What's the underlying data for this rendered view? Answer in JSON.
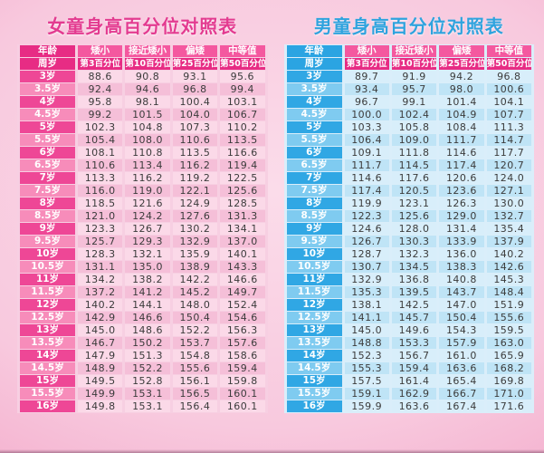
{
  "colors": {
    "girls": {
      "title": "#e33b90",
      "header_group": "#f4589f",
      "header_pct": "#e72c84",
      "age_header": "#e72c84",
      "age_cell_a": "#ee4796",
      "age_cell_b": "#f78cba",
      "row_a": "#fbd9e8",
      "row_b": "#f5bfd8",
      "gap": "#f7cfe2",
      "text": "#3b3b3b"
    },
    "boys": {
      "title": "#2fa3de",
      "header_group": "#f4589f",
      "header_pct": "#e72c84",
      "age_header": "#2ba4e2",
      "age_cell_a": "#30a7e4",
      "age_cell_b": "#7fcbf0",
      "row_a": "#d8eefa",
      "row_b": "#bfe4f6",
      "gap": "#daeefa",
      "text": "#3b3b3b"
    },
    "background_center": "#fbdcea",
    "background_edge": "#f19fc3"
  },
  "chart_data": [
    {
      "type": "table",
      "theme": "girls",
      "title": "女童身高百分位对照表",
      "header_row1": [
        "年龄",
        "矮小",
        "接近矮小",
        "偏矮",
        "中等值"
      ],
      "header_row2": [
        "周岁",
        "第3百分位",
        "第10百分位",
        "第25百分位",
        "第50百分位"
      ],
      "rows": [
        [
          "3岁",
          "88.6",
          "90.8",
          "93.1",
          "95.6"
        ],
        [
          "3.5岁",
          "92.4",
          "94.6",
          "96.8",
          "99.4"
        ],
        [
          "4岁",
          "95.8",
          "98.1",
          "100.4",
          "103.1"
        ],
        [
          "4.5岁",
          "99.2",
          "101.5",
          "104.0",
          "106.7"
        ],
        [
          "5岁",
          "102.3",
          "104.8",
          "107.3",
          "110.2"
        ],
        [
          "5.5岁",
          "105.4",
          "108.0",
          "110.6",
          "113.5"
        ],
        [
          "6岁",
          "108.1",
          "110.8",
          "113.5",
          "116.6"
        ],
        [
          "6.5岁",
          "110.6",
          "113.4",
          "116.2",
          "119.4"
        ],
        [
          "7岁",
          "113.3",
          "116.2",
          "119.2",
          "122.5"
        ],
        [
          "7.5岁",
          "116.0",
          "119.0",
          "122.1",
          "125.6"
        ],
        [
          "8岁",
          "118.5",
          "121.6",
          "124.9",
          "128.5"
        ],
        [
          "8.5岁",
          "121.0",
          "124.2",
          "127.6",
          "131.3"
        ],
        [
          "9岁",
          "123.3",
          "126.7",
          "130.2",
          "134.1"
        ],
        [
          "9.5岁",
          "125.7",
          "129.3",
          "132.9",
          "137.0"
        ],
        [
          "10岁",
          "128.3",
          "132.1",
          "135.9",
          "140.1"
        ],
        [
          "10.5岁",
          "131.1",
          "135.0",
          "138.9",
          "143.3"
        ],
        [
          "11岁",
          "134.2",
          "138.2",
          "142.2",
          "146.6"
        ],
        [
          "11.5岁",
          "137.2",
          "141.2",
          "145.2",
          "149.7"
        ],
        [
          "12岁",
          "140.2",
          "144.1",
          "148.0",
          "152.4"
        ],
        [
          "12.5岁",
          "142.9",
          "146.6",
          "150.4",
          "154.6"
        ],
        [
          "13岁",
          "145.0",
          "148.6",
          "152.2",
          "156.3"
        ],
        [
          "13.5岁",
          "146.7",
          "150.2",
          "153.7",
          "157.6"
        ],
        [
          "14岁",
          "147.9",
          "151.3",
          "154.8",
          "158.6"
        ],
        [
          "14.5岁",
          "148.9",
          "152.2",
          "155.6",
          "159.4"
        ],
        [
          "15岁",
          "149.5",
          "152.8",
          "156.1",
          "159.8"
        ],
        [
          "15.5岁",
          "149.9",
          "153.1",
          "156.5",
          "160.1"
        ],
        [
          "16岁",
          "149.8",
          "153.1",
          "156.4",
          "160.1"
        ]
      ]
    },
    {
      "type": "table",
      "theme": "boys",
      "title": "男童身高百分位对照表",
      "header_row1": [
        "年龄",
        "矮小",
        "接近矮小",
        "偏矮",
        "中等值"
      ],
      "header_row2": [
        "周岁",
        "第3百分位",
        "第10百分位",
        "第25百分位",
        "第50百分位"
      ],
      "rows": [
        [
          "3岁",
          "89.7",
          "91.9",
          "94.2",
          "96.8"
        ],
        [
          "3.5岁",
          "93.4",
          "95.7",
          "98.0",
          "100.6"
        ],
        [
          "4岁",
          "96.7",
          "99.1",
          "101.4",
          "104.1"
        ],
        [
          "4.5岁",
          "100.0",
          "102.4",
          "104.9",
          "107.7"
        ],
        [
          "5岁",
          "103.3",
          "105.8",
          "108.4",
          "111.3"
        ],
        [
          "5.5岁",
          "106.4",
          "109.0",
          "111.7",
          "114.7"
        ],
        [
          "6岁",
          "109.1",
          "111.8",
          "114.6",
          "117.7"
        ],
        [
          "6.5岁",
          "111.7",
          "114.5",
          "117.4",
          "120.7"
        ],
        [
          "7岁",
          "114.6",
          "117.6",
          "120.6",
          "124.0"
        ],
        [
          "7.5岁",
          "117.4",
          "120.5",
          "123.6",
          "127.1"
        ],
        [
          "8岁",
          "119.9",
          "123.1",
          "126.3",
          "130.0"
        ],
        [
          "8.5岁",
          "122.3",
          "125.6",
          "129.0",
          "132.7"
        ],
        [
          "9岁",
          "124.6",
          "128.0",
          "131.4",
          "135.4"
        ],
        [
          "9.5岁",
          "126.7",
          "130.3",
          "133.9",
          "137.9"
        ],
        [
          "10岁",
          "128.7",
          "132.3",
          "136.0",
          "140.2"
        ],
        [
          "10.5岁",
          "130.7",
          "134.5",
          "138.3",
          "142.6"
        ],
        [
          "11岁",
          "132.9",
          "136.8",
          "140.8",
          "145.3"
        ],
        [
          "11.5岁",
          "135.3",
          "139.5",
          "143.7",
          "148.4"
        ],
        [
          "12岁",
          "138.1",
          "142.5",
          "147.0",
          "151.9"
        ],
        [
          "12.5岁",
          "141.1",
          "145.7",
          "150.4",
          "155.6"
        ],
        [
          "13岁",
          "145.0",
          "149.6",
          "154.3",
          "159.5"
        ],
        [
          "13.5岁",
          "148.8",
          "153.3",
          "157.9",
          "163.0"
        ],
        [
          "14岁",
          "152.3",
          "156.7",
          "161.0",
          "165.9"
        ],
        [
          "14.5岁",
          "155.3",
          "159.4",
          "163.6",
          "168.2"
        ],
        [
          "15岁",
          "157.5",
          "161.4",
          "165.4",
          "169.8"
        ],
        [
          "15.5岁",
          "159.1",
          "162.9",
          "166.7",
          "171.0"
        ],
        [
          "16岁",
          "159.9",
          "163.6",
          "167.4",
          "171.6"
        ]
      ]
    }
  ]
}
